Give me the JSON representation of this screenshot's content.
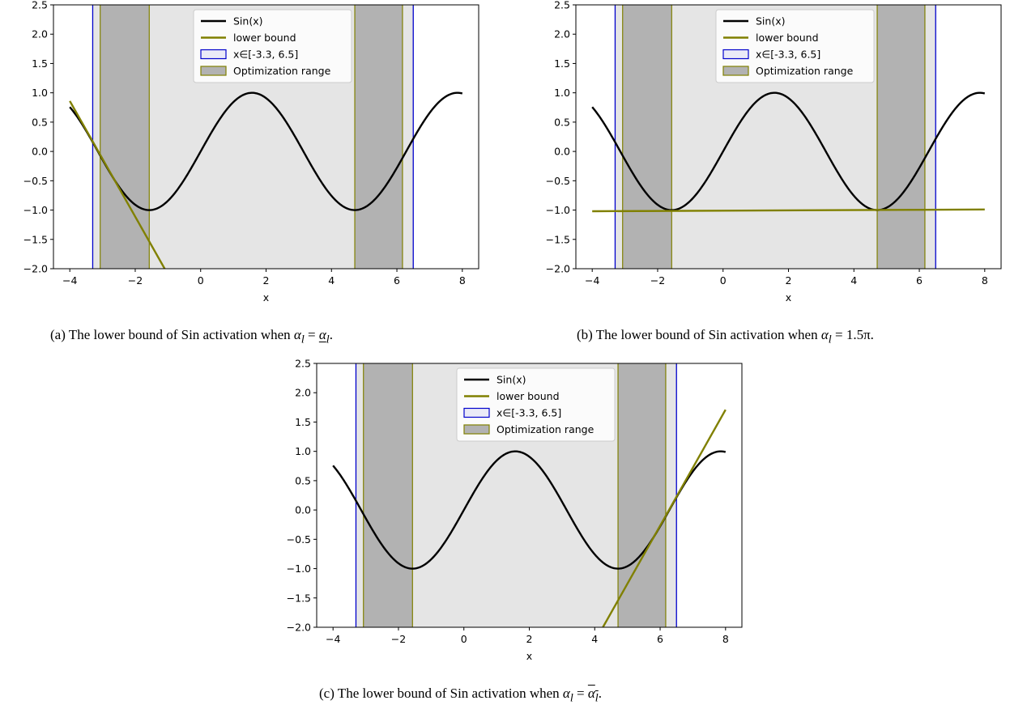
{
  "chart_data": [
    {
      "type": "line",
      "xlabel": "x",
      "ylabel": "",
      "xlim": [
        -4.5,
        8.5
      ],
      "ylim": [
        -2.0,
        2.5
      ],
      "xticks": [
        -4,
        -2,
        0,
        2,
        4,
        6,
        8
      ],
      "xtick_labels": [
        "−4",
        "−2",
        "0",
        "2",
        "4",
        "6",
        "8"
      ],
      "yticks": [
        -2.0,
        -1.5,
        -1.0,
        -0.5,
        0.0,
        0.5,
        1.0,
        1.5,
        2.0,
        2.5
      ],
      "ytick_labels": [
        "−2.0",
        "−1.5",
        "−1.0",
        "−0.5",
        "0.0",
        "0.5",
        "1.0",
        "1.5",
        "2.0",
        "2.5"
      ],
      "legend_position": "top-center",
      "legend": [
        "Sin(x)",
        "lower bound",
        "x∈[-3.3, 6.5]",
        "Optimization range"
      ],
      "input_range": [
        -3.3,
        6.5
      ],
      "optimization_ranges": [
        [
          -3.0708,
          -1.5708
        ],
        [
          4.7124,
          6.1708
        ]
      ],
      "sin_domain": [
        -4,
        8
      ],
      "lower_bound": {
        "x": [
          -4.0,
          -1.1
        ],
        "y": [
          0.86,
          -2.0
        ]
      },
      "colors": {
        "sin": "#000000",
        "bound": "#808000",
        "range_edge": "#0000cc",
        "range_fill": "#e5e5e5",
        "opt_fill": "#b2b2b2"
      },
      "caption": {
        "label": "(a) The lower bound of Sin activation when ",
        "var": "α",
        "sub": "l",
        "eq": " = ",
        "val_var": "α",
        "val_sub": "l",
        "tail": "."
      }
    },
    {
      "type": "line",
      "xlabel": "x",
      "ylabel": "",
      "xlim": [
        -4.5,
        8.5
      ],
      "ylim": [
        -2.0,
        2.5
      ],
      "xticks": [
        -4,
        -2,
        0,
        2,
        4,
        6,
        8
      ],
      "xtick_labels": [
        "−4",
        "−2",
        "0",
        "2",
        "4",
        "6",
        "8"
      ],
      "yticks": [
        -2.0,
        -1.5,
        -1.0,
        -0.5,
        0.0,
        0.5,
        1.0,
        1.5,
        2.0,
        2.5
      ],
      "ytick_labels": [
        "−2.0",
        "−1.5",
        "−1.0",
        "−0.5",
        "0.0",
        "0.5",
        "1.0",
        "1.5",
        "2.0",
        "2.5"
      ],
      "legend_position": "top-center",
      "legend": [
        "Sin(x)",
        "lower bound",
        "x∈[-3.3, 6.5]",
        "Optimization range"
      ],
      "input_range": [
        -3.3,
        6.5
      ],
      "optimization_ranges": [
        [
          -3.0708,
          -1.5708
        ],
        [
          4.7124,
          6.1708
        ]
      ],
      "sin_domain": [
        -4,
        8
      ],
      "lower_bound": {
        "x": [
          -4.0,
          8.0
        ],
        "y": [
          -1.02,
          -0.99
        ]
      },
      "colors": {
        "sin": "#000000",
        "bound": "#808000",
        "range_edge": "#0000cc",
        "range_fill": "#e5e5e5",
        "opt_fill": "#b2b2b2"
      },
      "caption": {
        "label": "(b) The lower bound of Sin activation when ",
        "var": "α",
        "sub": "l",
        "eq": " = ",
        "val": "1.5π",
        "tail": "."
      }
    },
    {
      "type": "line",
      "xlabel": "x",
      "ylabel": "",
      "xlim": [
        -4.5,
        8.5
      ],
      "ylim": [
        -2.0,
        2.5
      ],
      "xticks": [
        -4,
        -2,
        0,
        2,
        4,
        6,
        8
      ],
      "xtick_labels": [
        "−4",
        "−2",
        "0",
        "2",
        "4",
        "6",
        "8"
      ],
      "yticks": [
        -2.0,
        -1.5,
        -1.0,
        -0.5,
        0.0,
        0.5,
        1.0,
        1.5,
        2.0,
        2.5
      ],
      "ytick_labels": [
        "−2.0",
        "−1.5",
        "−1.0",
        "−0.5",
        "0.0",
        "0.5",
        "1.0",
        "1.5",
        "2.0",
        "2.5"
      ],
      "legend_position": "top-center",
      "legend": [
        "Sin(x)",
        "lower bound",
        "x∈[-3.3, 6.5]",
        "Optimization range"
      ],
      "input_range": [
        -3.3,
        6.5
      ],
      "optimization_ranges": [
        [
          -3.0708,
          -1.5708
        ],
        [
          4.7124,
          6.1708
        ]
      ],
      "sin_domain": [
        -4,
        8
      ],
      "lower_bound": {
        "x": [
          4.25,
          8.0
        ],
        "y": [
          -2.0,
          1.71
        ]
      },
      "colors": {
        "sin": "#000000",
        "bound": "#808000",
        "range_edge": "#0000cc",
        "range_fill": "#e5e5e5",
        "opt_fill": "#b2b2b2"
      },
      "caption": {
        "label": "(c) The lower bound of Sin activation when ",
        "var": "α",
        "sub": "l",
        "eq": " = ",
        "val_var": "α",
        "val_sub": "l",
        "tail": "."
      }
    }
  ]
}
